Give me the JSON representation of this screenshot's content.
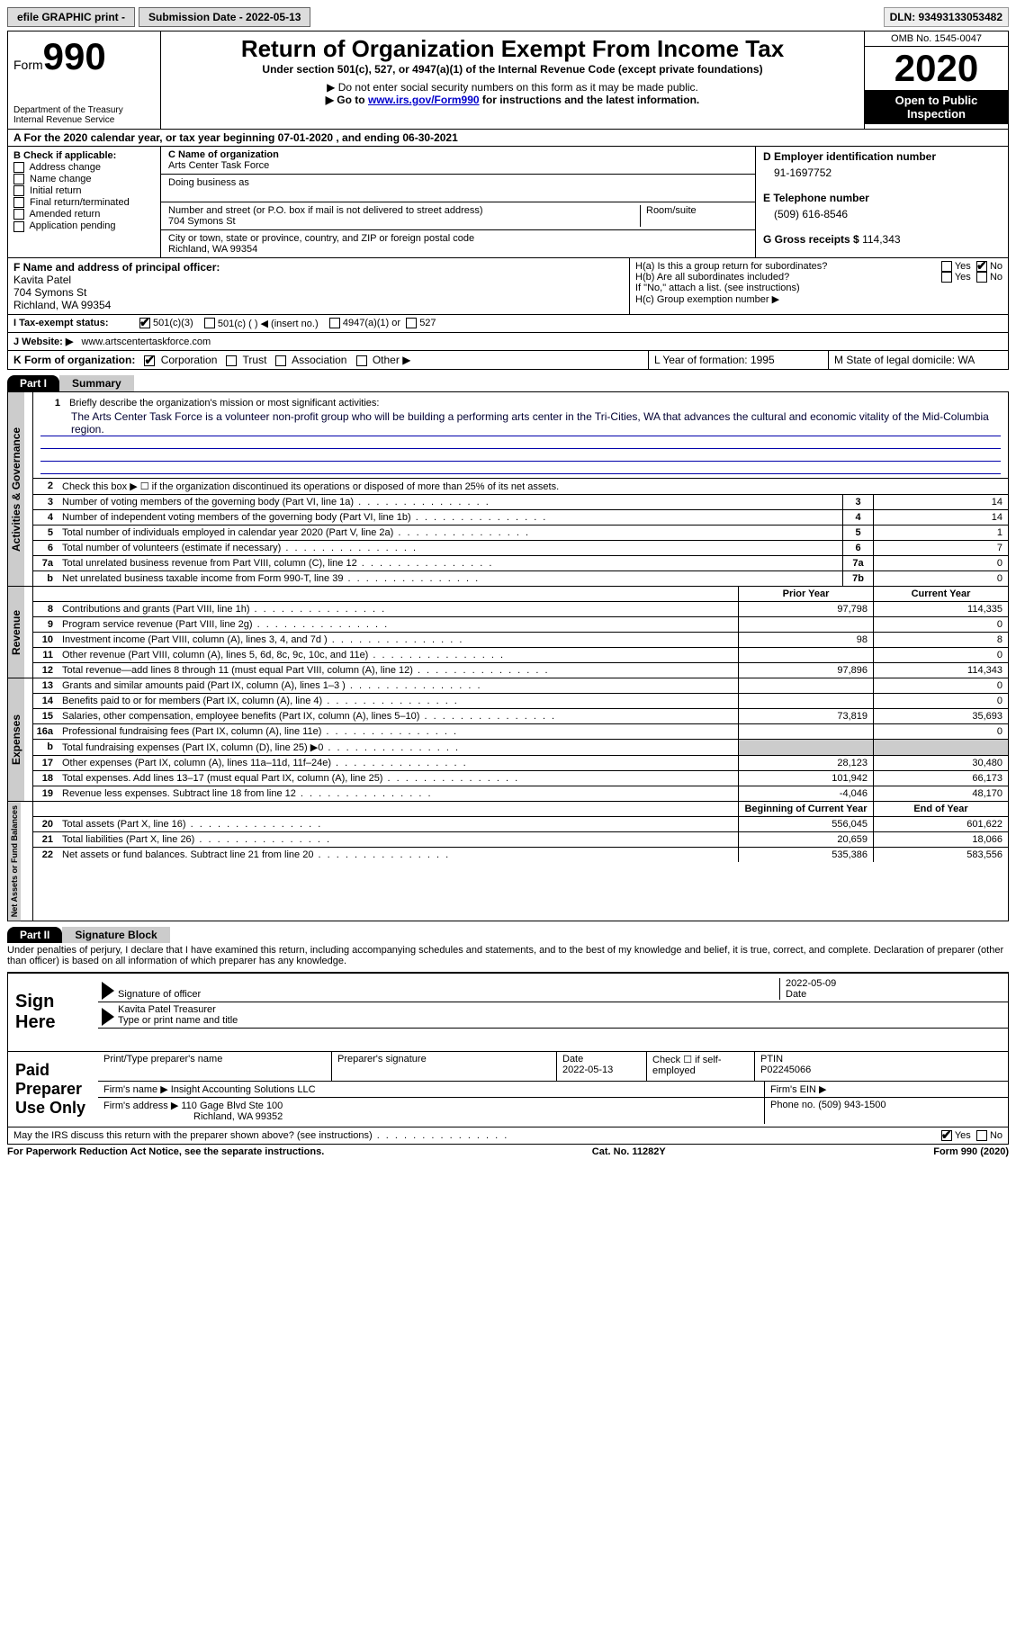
{
  "topbar": {
    "efile": "efile GRAPHIC print -",
    "submission": "Submission Date - 2022-05-13",
    "dln": "DLN: 93493133053482"
  },
  "header": {
    "form_word": "Form",
    "form_num": "990",
    "dept": "Department of the Treasury",
    "irs": "Internal Revenue Service",
    "title": "Return of Organization Exempt From Income Tax",
    "subtitle": "Under section 501(c), 527, or 4947(a)(1) of the Internal Revenue Code (except private foundations)",
    "note1": "▶ Do not enter social security numbers on this form as it may be made public.",
    "note2_pre": "▶ Go to ",
    "note2_link": "www.irs.gov/Form990",
    "note2_post": " for instructions and the latest information.",
    "omb": "OMB No. 1545-0047",
    "year": "2020",
    "inspection": "Open to Public Inspection"
  },
  "section_a": "A  For the 2020 calendar year, or tax year beginning 07-01-2020    , and ending 06-30-2021",
  "col_b": {
    "hdr": "B Check if applicable:",
    "items": [
      "Address change",
      "Name change",
      "Initial return",
      "Final return/terminated",
      "Amended return",
      "Application pending"
    ]
  },
  "col_c": {
    "name_lbl": "C Name of organization",
    "name": "Arts Center Task Force",
    "dba_lbl": "Doing business as",
    "addr_lbl": "Number and street (or P.O. box if mail is not delivered to street address)",
    "room_lbl": "Room/suite",
    "addr": "704 Symons St",
    "city_lbl": "City or town, state or province, country, and ZIP or foreign postal code",
    "city": "Richland, WA  99354"
  },
  "col_d": {
    "ein_lbl": "D Employer identification number",
    "ein": "91-1697752",
    "phone_lbl": "E Telephone number",
    "phone": "(509) 616-8546",
    "gross_lbl": "G Gross receipts $",
    "gross": "114,343"
  },
  "row_f": {
    "lbl": "F  Name and address of principal officer:",
    "name": "Kavita Patel",
    "addr1": "704 Symons St",
    "addr2": "Richland, WA  99354"
  },
  "row_h": {
    "ha": "H(a)  Is this a group return for subordinates?",
    "hb": "H(b)  Are all subordinates included?",
    "hb_note": "If \"No,\" attach a list. (see instructions)",
    "hc": "H(c)  Group exemption number ▶",
    "yes": "Yes",
    "no": "No"
  },
  "row_i": {
    "lbl": "I    Tax-exempt status:",
    "o1": "501(c)(3)",
    "o2": "501(c) (  ) ◀ (insert no.)",
    "o3": "4947(a)(1) or",
    "o4": "527"
  },
  "row_j": {
    "lbl": "J   Website: ▶",
    "val": "www.artscentertaskforce.com"
  },
  "row_k": {
    "lbl": "K Form of organization:",
    "o1": "Corporation",
    "o2": "Trust",
    "o3": "Association",
    "o4": "Other ▶",
    "l": "L Year of formation: 1995",
    "m": "M State of legal domicile: WA"
  },
  "part1": {
    "hdr": "Part I",
    "title": "Summary"
  },
  "summary": {
    "q1_lbl": "Briefly describe the organization's mission or most significant activities:",
    "q1_text": "The Arts Center Task Force is a volunteer non-profit group who will be building a performing arts center in the Tri-Cities, WA that advances the cultural and economic vitality of the Mid-Columbia region.",
    "q2": "Check this box ▶ ☐  if the organization discontinued its operations or disposed of more than 25% of its net assets.",
    "rows_a": [
      {
        "n": "3",
        "t": "Number of voting members of the governing body (Part VI, line 1a)",
        "b": "3",
        "v": "14"
      },
      {
        "n": "4",
        "t": "Number of independent voting members of the governing body (Part VI, line 1b)",
        "b": "4",
        "v": "14"
      },
      {
        "n": "5",
        "t": "Total number of individuals employed in calendar year 2020 (Part V, line 2a)",
        "b": "5",
        "v": "1"
      },
      {
        "n": "6",
        "t": "Total number of volunteers (estimate if necessary)",
        "b": "6",
        "v": "7"
      },
      {
        "n": "7a",
        "t": "Total unrelated business revenue from Part VIII, column (C), line 12",
        "b": "7a",
        "v": "0"
      },
      {
        "n": "b",
        "t": "Net unrelated business taxable income from Form 990-T, line 39",
        "b": "7b",
        "v": "0"
      }
    ],
    "col_hdr_prior": "Prior Year",
    "col_hdr_curr": "Current Year",
    "revenue": [
      {
        "n": "8",
        "t": "Contributions and grants (Part VIII, line 1h)",
        "p": "97,798",
        "c": "114,335"
      },
      {
        "n": "9",
        "t": "Program service revenue (Part VIII, line 2g)",
        "p": "",
        "c": "0"
      },
      {
        "n": "10",
        "t": "Investment income (Part VIII, column (A), lines 3, 4, and 7d )",
        "p": "98",
        "c": "8"
      },
      {
        "n": "11",
        "t": "Other revenue (Part VIII, column (A), lines 5, 6d, 8c, 9c, 10c, and 11e)",
        "p": "",
        "c": "0"
      },
      {
        "n": "12",
        "t": "Total revenue—add lines 8 through 11 (must equal Part VIII, column (A), line 12)",
        "p": "97,896",
        "c": "114,343"
      }
    ],
    "expenses": [
      {
        "n": "13",
        "t": "Grants and similar amounts paid (Part IX, column (A), lines 1–3 )",
        "p": "",
        "c": "0"
      },
      {
        "n": "14",
        "t": "Benefits paid to or for members (Part IX, column (A), line 4)",
        "p": "",
        "c": "0"
      },
      {
        "n": "15",
        "t": "Salaries, other compensation, employee benefits (Part IX, column (A), lines 5–10)",
        "p": "73,819",
        "c": "35,693"
      },
      {
        "n": "16a",
        "t": "Professional fundraising fees (Part IX, column (A), line 11e)",
        "p": "",
        "c": "0"
      },
      {
        "n": "b",
        "t": "Total fundraising expenses (Part IX, column (D), line 25) ▶0",
        "p": "shade",
        "c": "shade"
      },
      {
        "n": "17",
        "t": "Other expenses (Part IX, column (A), lines 11a–11d, 11f–24e)",
        "p": "28,123",
        "c": "30,480"
      },
      {
        "n": "18",
        "t": "Total expenses. Add lines 13–17 (must equal Part IX, column (A), line 25)",
        "p": "101,942",
        "c": "66,173"
      },
      {
        "n": "19",
        "t": "Revenue less expenses. Subtract line 18 from line 12",
        "p": "-4,046",
        "c": "48,170"
      }
    ],
    "net_hdr_beg": "Beginning of Current Year",
    "net_hdr_end": "End of Year",
    "net": [
      {
        "n": "20",
        "t": "Total assets (Part X, line 16)",
        "p": "556,045",
        "c": "601,622"
      },
      {
        "n": "21",
        "t": "Total liabilities (Part X, line 26)",
        "p": "20,659",
        "c": "18,066"
      },
      {
        "n": "22",
        "t": "Net assets or fund balances. Subtract line 21 from line 20",
        "p": "535,386",
        "c": "583,556"
      }
    ],
    "side_labels": {
      "gov": "Activities & Governance",
      "rev": "Revenue",
      "exp": "Expenses",
      "net": "Net Assets or Fund Balances"
    }
  },
  "part2": {
    "hdr": "Part II",
    "title": "Signature Block",
    "decl": "Under penalties of perjury, I declare that I have examined this return, including accompanying schedules and statements, and to the best of my knowledge and belief, it is true, correct, and complete. Declaration of preparer (other than officer) is based on all information of which preparer has any knowledge."
  },
  "sign": {
    "lbl": "Sign Here",
    "sig_of": "Signature of officer",
    "date": "Date",
    "date_val": "2022-05-09",
    "name": "Kavita Patel  Treasurer",
    "type_lbl": "Type or print name and title"
  },
  "prep": {
    "lbl": "Paid Preparer Use Only",
    "c1": "Print/Type preparer's name",
    "c2": "Preparer's signature",
    "c3": "Date",
    "c3v": "2022-05-13",
    "c4": "Check ☐ if self-employed",
    "c5": "PTIN",
    "c5v": "P02245066",
    "firm_lbl": "Firm's name    ▶",
    "firm": "Insight Accounting Solutions LLC",
    "ein_lbl": "Firm's EIN ▶",
    "addr_lbl": "Firm's address ▶",
    "addr1": "110 Gage Blvd Ste 100",
    "addr2": "Richland, WA  99352",
    "phone_lbl": "Phone no.",
    "phone": "(509) 943-1500",
    "discuss": "May the IRS discuss this return with the preparer shown above? (see instructions)"
  },
  "footer": {
    "left": "For Paperwork Reduction Act Notice, see the separate instructions.",
    "mid": "Cat. No. 11282Y",
    "right": "Form 990 (2020)"
  }
}
